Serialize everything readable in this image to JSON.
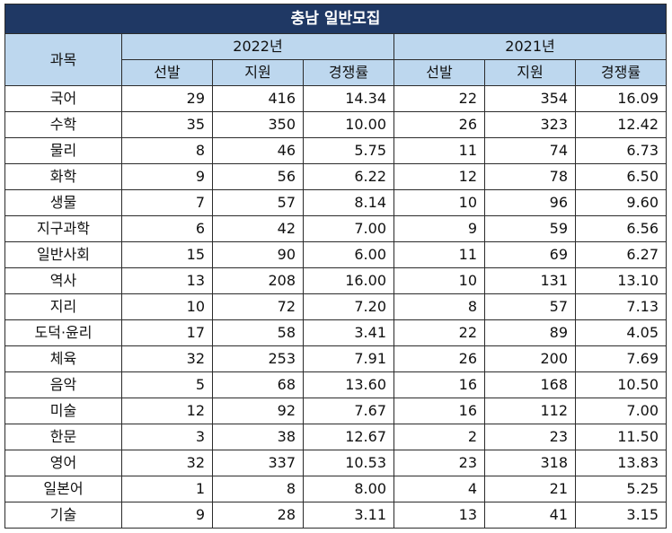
{
  "title": "충남 일반모집",
  "header": {
    "subject": "과목",
    "years": [
      "2022년",
      "2021년"
    ],
    "cols": [
      "선발",
      "지원",
      "경쟁률"
    ]
  },
  "rows": [
    {
      "subject": "국어",
      "y2022": [
        "29",
        "416",
        "14.34"
      ],
      "y2021": [
        "22",
        "354",
        "16.09"
      ]
    },
    {
      "subject": "수학",
      "y2022": [
        "35",
        "350",
        "10.00"
      ],
      "y2021": [
        "26",
        "323",
        "12.42"
      ]
    },
    {
      "subject": "물리",
      "y2022": [
        "8",
        "46",
        "5.75"
      ],
      "y2021": [
        "11",
        "74",
        "6.73"
      ]
    },
    {
      "subject": "화학",
      "y2022": [
        "9",
        "56",
        "6.22"
      ],
      "y2021": [
        "12",
        "78",
        "6.50"
      ]
    },
    {
      "subject": "생물",
      "y2022": [
        "7",
        "57",
        "8.14"
      ],
      "y2021": [
        "10",
        "96",
        "9.60"
      ]
    },
    {
      "subject": "지구과학",
      "y2022": [
        "6",
        "42",
        "7.00"
      ],
      "y2021": [
        "9",
        "59",
        "6.56"
      ]
    },
    {
      "subject": "일반사회",
      "y2022": [
        "15",
        "90",
        "6.00"
      ],
      "y2021": [
        "11",
        "69",
        "6.27"
      ]
    },
    {
      "subject": "역사",
      "y2022": [
        "13",
        "208",
        "16.00"
      ],
      "y2021": [
        "10",
        "131",
        "13.10"
      ]
    },
    {
      "subject": "지리",
      "y2022": [
        "10",
        "72",
        "7.20"
      ],
      "y2021": [
        "8",
        "57",
        "7.13"
      ]
    },
    {
      "subject": "도덕·윤리",
      "y2022": [
        "17",
        "58",
        "3.41"
      ],
      "y2021": [
        "22",
        "89",
        "4.05"
      ]
    },
    {
      "subject": "체육",
      "y2022": [
        "32",
        "253",
        "7.91"
      ],
      "y2021": [
        "26",
        "200",
        "7.69"
      ]
    },
    {
      "subject": "음악",
      "y2022": [
        "5",
        "68",
        "13.60"
      ],
      "y2021": [
        "16",
        "168",
        "10.50"
      ]
    },
    {
      "subject": "미술",
      "y2022": [
        "12",
        "92",
        "7.67"
      ],
      "y2021": [
        "16",
        "112",
        "7.00"
      ]
    },
    {
      "subject": "한문",
      "y2022": [
        "3",
        "38",
        "12.67"
      ],
      "y2021": [
        "2",
        "23",
        "11.50"
      ]
    },
    {
      "subject": "영어",
      "y2022": [
        "32",
        "337",
        "10.53"
      ],
      "y2021": [
        "23",
        "318",
        "13.83"
      ]
    },
    {
      "subject": "일본어",
      "y2022": [
        "1",
        "8",
        "8.00"
      ],
      "y2021": [
        "4",
        "21",
        "5.25"
      ]
    },
    {
      "subject": "기술",
      "y2022": [
        "9",
        "28",
        "3.11"
      ],
      "y2021": [
        "13",
        "41",
        "3.15"
      ]
    }
  ],
  "colors": {
    "title_bg": "#1f3864",
    "header_bg": "#bdd7ee",
    "border": "#2b2b2b"
  }
}
